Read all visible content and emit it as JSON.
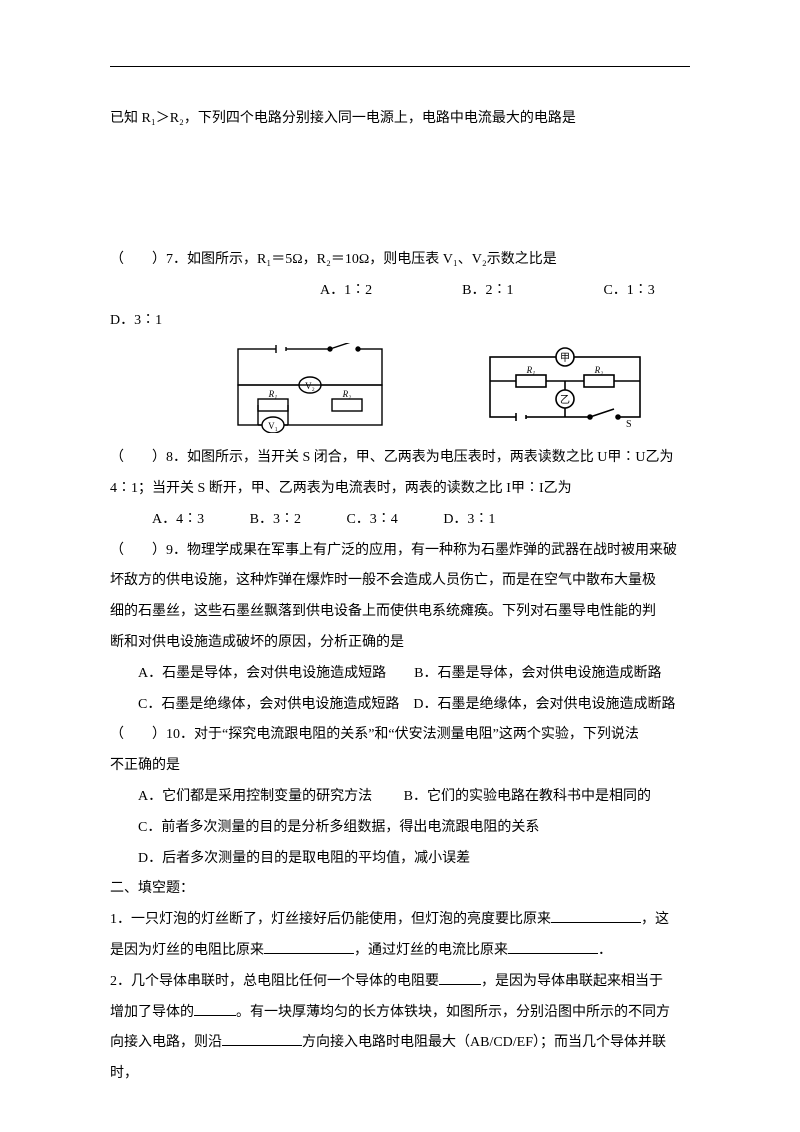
{
  "q6_intro": "已知 R₁＞R₂，下列四个电路分别接入同一电源上，电路中电流最大的电路是",
  "q7": {
    "stem": "（　　）7．如图所示，R₁＝5Ω，R₂＝10Ω，则电压表 V₁、V₂示数之比是",
    "optA": "A．1∶2",
    "optB": "B．2∶1",
    "optC": "C．1∶3",
    "optD_prefix": "D．3∶1"
  },
  "q8": {
    "line1": "（　　）8．如图所示，当开关 S 闭合，甲、乙两表为电压表时，两表读数之比 U甲∶U乙为",
    "line2": "4∶1；当开关 S 断开，甲、乙两表为电流表时，两表的读数之比 I甲∶I乙为",
    "optA": "A．4∶3",
    "optB": "B．3∶2",
    "optC": "C．3∶4",
    "optD": "D．3∶1"
  },
  "q9": {
    "line1": "（　　）9．物理学成果在军事上有广泛的应用，有一种称为石墨炸弹的武器在战时被用来破",
    "line2": "坏敌方的供电设施，这种炸弹在爆炸时一般不会造成人员伤亡，而是在空气中散布大量极",
    "line3": "细的石墨丝，这些石墨丝飘落到供电设备上而使供电系统瘫痪。下列对石墨导电性能的判",
    "line4": "断和对供电设施造成破坏的原因，分析正确的是",
    "optAB": "A．石墨是导体，会对供电设施造成短路　　B．石墨是导体，会对供电设施造成断路",
    "optCD": "C．石墨是绝缘体，会对供电设施造成短路　D．石墨是绝缘体，会对供电设施造成断路"
  },
  "q10": {
    "line1": "（　　）10．对于“探究电流跟电阻的关系”和“伏安法测量电阻”这两个实验，下列说法",
    "line2": "不正确的是",
    "optA": "A．它们都是采用控制变量的研究方法",
    "optB": "B．它们的实验电路在教科书中是相同的",
    "optC": "C．前者多次测量的目的是分析多组数据，得出电流跟电阻的关系",
    "optD": "D．后者多次测量的目的是取电阻的平均值，减小误差"
  },
  "section2": "二、填空题：",
  "fill1": {
    "part1": "1．一只灯泡的灯丝断了，灯丝接好后仍能使用，但灯泡的亮度要比原来",
    "part2": "，这",
    "part3": "是因为灯丝的电阻比原来",
    "part4": "，通过灯丝的电流比原来",
    "part5": "．"
  },
  "fill2": {
    "part1": "2．几个导体串联时，总电阻比任何一个导体的电阻要",
    "part2": "，是因为导体串联起来相当于",
    "part3": "增加了导体的",
    "part4": "。有一块厚薄均匀的长方体铁块，如图所示，分别沿图中所示的不同方",
    "part5": "向接入电路，则沿",
    "part6": "方向接入电路时电阻最大（AB/CD/EF）；而当几个导体并联时，"
  },
  "blank_widths": {
    "w1": 90,
    "w2": 90,
    "w3": 90,
    "w4": 42,
    "w5": 42,
    "w6": 80
  }
}
